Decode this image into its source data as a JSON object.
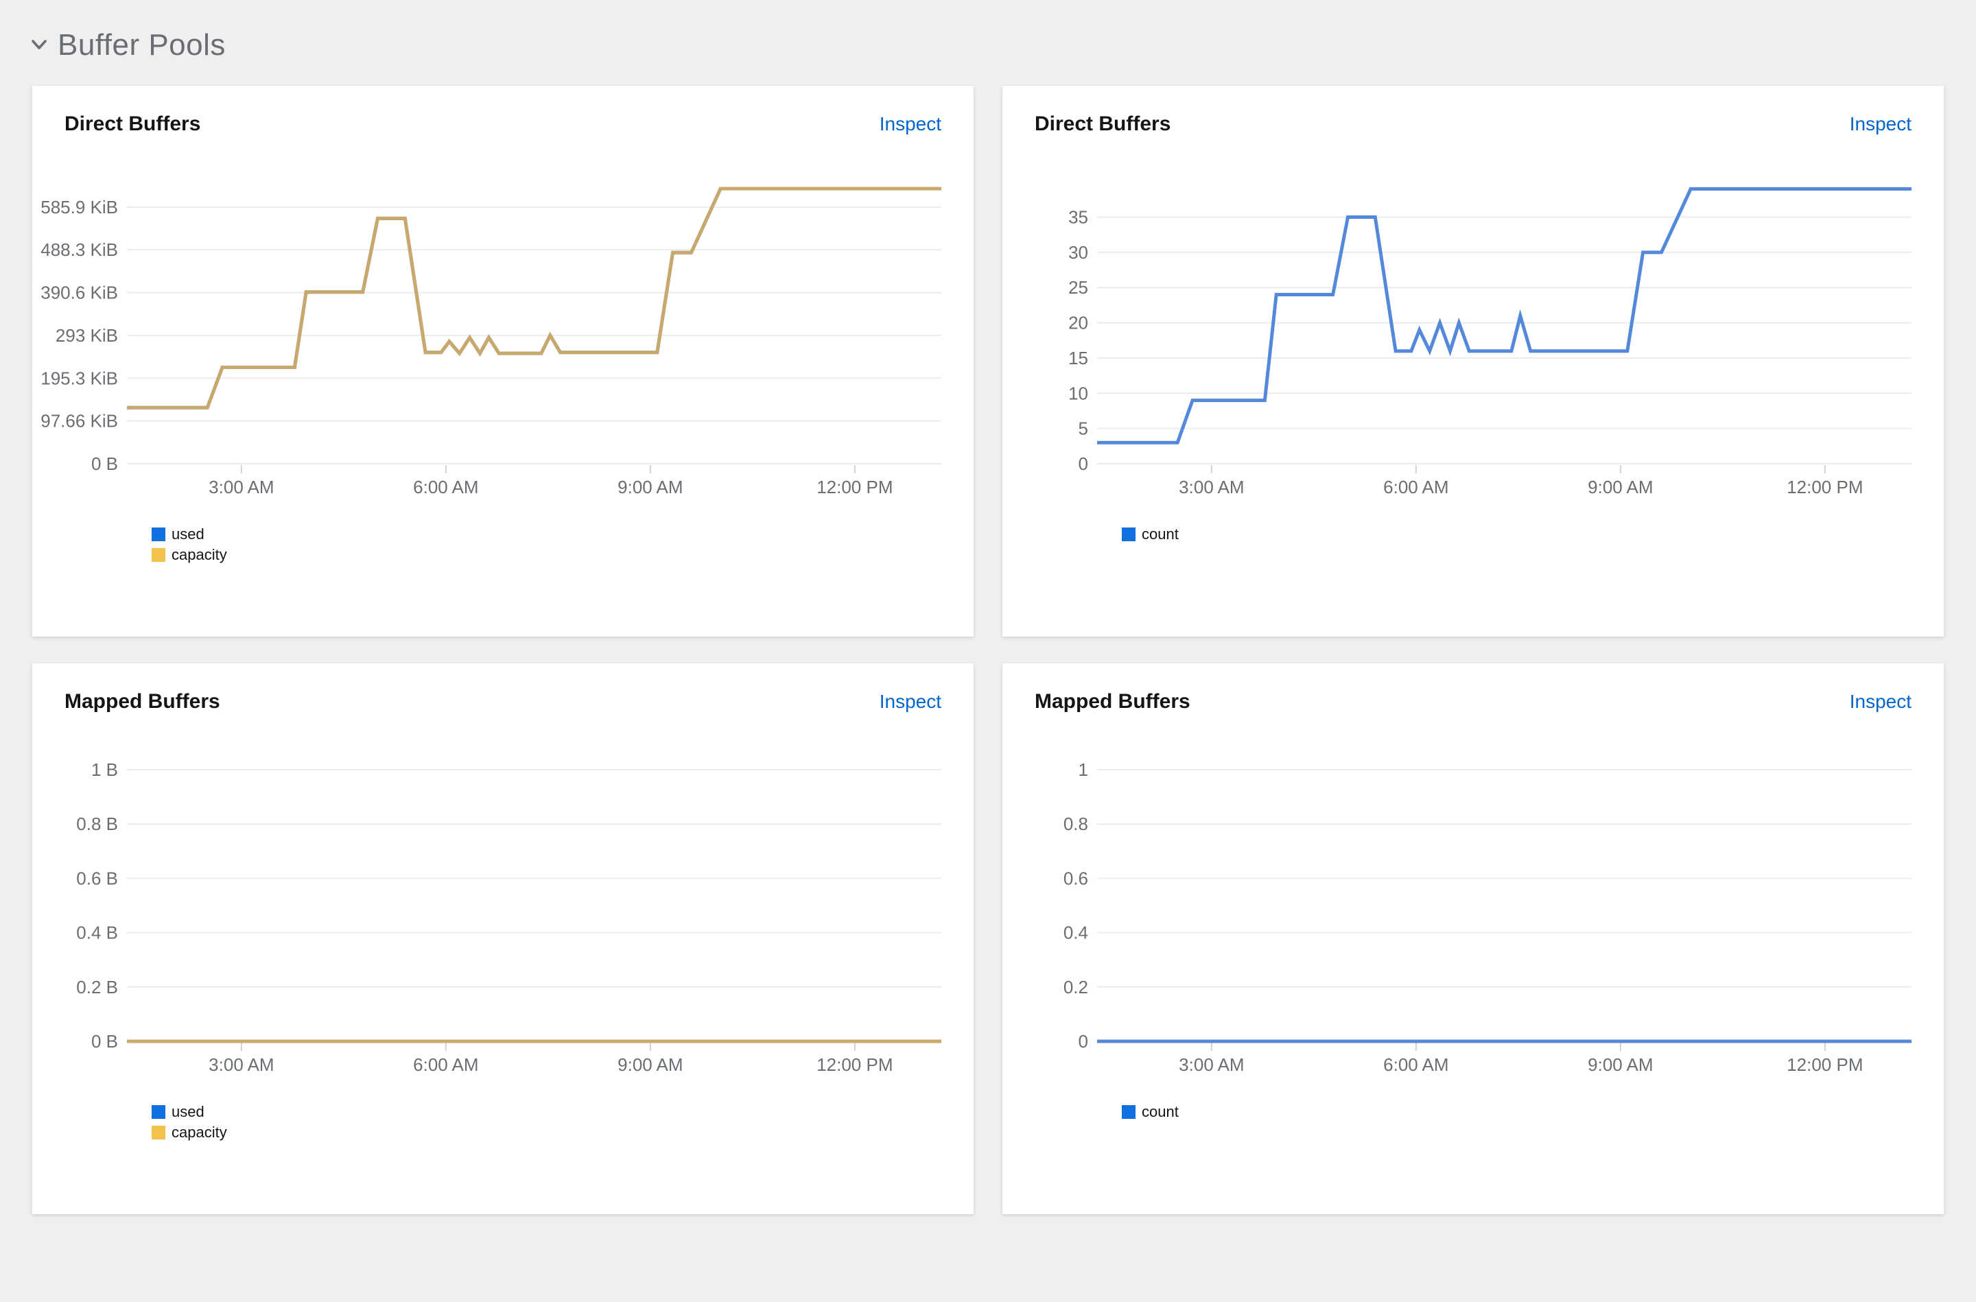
{
  "page": {
    "background": "#efefef",
    "section": {
      "title": "Buffer Pools",
      "collapse_icon": "chevron-down-icon",
      "title_color": "#6a6e73"
    }
  },
  "palette": {
    "axis_text": "#6a6e73",
    "gridline": "#ececec",
    "tick_mark": "#d2d2d2",
    "link_blue": "#0066cc",
    "legend_blue": "#1070e0",
    "legend_gold": "#f2c24c",
    "line_blue": "#5488da",
    "line_gold": "#c9a86b"
  },
  "cards": [
    {
      "title": "Direct Buffers",
      "inspect_label": "Inspect",
      "legend": [
        {
          "label": "used",
          "color": "#1070e0"
        },
        {
          "label": "capacity",
          "color": "#f2c24c"
        }
      ],
      "chart": {
        "type": "line",
        "grid": true,
        "y_unit": "bytes",
        "y_ticks": [
          {
            "label": "0 B",
            "v": 0
          },
          {
            "label": "97.66 KiB",
            "v": 97.66
          },
          {
            "label": "195.3 KiB",
            "v": 195.3
          },
          {
            "label": "293 KiB",
            "v": 293
          },
          {
            "label": "390.6 KiB",
            "v": 390.6
          },
          {
            "label": "488.3 KiB",
            "v": 488.3
          },
          {
            "label": "585.9 KiB",
            "v": 585.9
          }
        ],
        "y_plot_max": 653,
        "x_ticks": [
          {
            "label": "3:00 AM",
            "h": 3
          },
          {
            "label": "6:00 AM",
            "h": 6
          },
          {
            "label": "9:00 AM",
            "h": 9
          },
          {
            "label": "12:00 PM",
            "h": 12
          }
        ],
        "x_domain": [
          1.32,
          13.27
        ],
        "series": [
          {
            "name": "used",
            "color": "#5488da",
            "points": [
              [
                1.32,
                128
              ],
              [
                2.5,
                128
              ],
              [
                2.72,
                220
              ],
              [
                3.78,
                220
              ],
              [
                3.95,
                392
              ],
              [
                4.78,
                392
              ],
              [
                5.0,
                560
              ],
              [
                5.4,
                560
              ],
              [
                5.7,
                254
              ],
              [
                5.93,
                254
              ],
              [
                6.05,
                279
              ],
              [
                6.2,
                252
              ],
              [
                6.35,
                288
              ],
              [
                6.5,
                252
              ],
              [
                6.63,
                288
              ],
              [
                6.78,
                252
              ],
              [
                7.4,
                252
              ],
              [
                7.53,
                293
              ],
              [
                7.68,
                254
              ],
              [
                9.1,
                254
              ],
              [
                9.33,
                482
              ],
              [
                9.6,
                482
              ],
              [
                10.03,
                628
              ],
              [
                13.27,
                628
              ]
            ]
          },
          {
            "name": "capacity",
            "color": "#c9a86b",
            "points": [
              [
                1.32,
                128
              ],
              [
                2.5,
                128
              ],
              [
                2.72,
                220
              ],
              [
                3.78,
                220
              ],
              [
                3.95,
                392
              ],
              [
                4.78,
                392
              ],
              [
                5.0,
                560
              ],
              [
                5.4,
                560
              ],
              [
                5.7,
                254
              ],
              [
                5.93,
                254
              ],
              [
                6.05,
                279
              ],
              [
                6.2,
                252
              ],
              [
                6.35,
                288
              ],
              [
                6.5,
                252
              ],
              [
                6.63,
                288
              ],
              [
                6.78,
                252
              ],
              [
                7.4,
                252
              ],
              [
                7.53,
                293
              ],
              [
                7.68,
                254
              ],
              [
                9.1,
                254
              ],
              [
                9.33,
                482
              ],
              [
                9.6,
                482
              ],
              [
                10.03,
                628
              ],
              [
                13.27,
                628
              ]
            ]
          }
        ]
      }
    },
    {
      "title": "Direct Buffers",
      "inspect_label": "Inspect",
      "legend": [
        {
          "label": "count",
          "color": "#1070e0"
        }
      ],
      "chart": {
        "type": "line",
        "grid": true,
        "y_unit": "count",
        "y_ticks": [
          {
            "label": "0",
            "v": 0
          },
          {
            "label": "5",
            "v": 5
          },
          {
            "label": "10",
            "v": 10
          },
          {
            "label": "15",
            "v": 15
          },
          {
            "label": "20",
            "v": 20
          },
          {
            "label": "25",
            "v": 25
          },
          {
            "label": "30",
            "v": 30
          },
          {
            "label": "35",
            "v": 35
          }
        ],
        "y_plot_max": 40.6,
        "x_ticks": [
          {
            "label": "3:00 AM",
            "h": 3
          },
          {
            "label": "6:00 AM",
            "h": 6
          },
          {
            "label": "9:00 AM",
            "h": 9
          },
          {
            "label": "12:00 PM",
            "h": 12
          }
        ],
        "x_domain": [
          1.32,
          13.27
        ],
        "series": [
          {
            "name": "count",
            "color": "#5488da",
            "points": [
              [
                1.32,
                3
              ],
              [
                2.5,
                3
              ],
              [
                2.72,
                9
              ],
              [
                3.78,
                9
              ],
              [
                3.95,
                24
              ],
              [
                4.78,
                24
              ],
              [
                5.0,
                35
              ],
              [
                5.4,
                35
              ],
              [
                5.7,
                16
              ],
              [
                5.93,
                16
              ],
              [
                6.05,
                19
              ],
              [
                6.2,
                16
              ],
              [
                6.35,
                20
              ],
              [
                6.5,
                16
              ],
              [
                6.63,
                20
              ],
              [
                6.78,
                16
              ],
              [
                7.4,
                16
              ],
              [
                7.53,
                21
              ],
              [
                7.68,
                16
              ],
              [
                9.1,
                16
              ],
              [
                9.33,
                30
              ],
              [
                9.6,
                30
              ],
              [
                10.03,
                39
              ],
              [
                13.27,
                39
              ]
            ]
          }
        ]
      }
    },
    {
      "title": "Mapped Buffers",
      "inspect_label": "Inspect",
      "legend": [
        {
          "label": "used",
          "color": "#1070e0"
        },
        {
          "label": "capacity",
          "color": "#f2c24c"
        }
      ],
      "chart": {
        "type": "line",
        "grid": true,
        "y_unit": "bytes",
        "y_ticks": [
          {
            "label": "0 B",
            "v": 0
          },
          {
            "label": "0.2 B",
            "v": 0.2
          },
          {
            "label": "0.4 B",
            "v": 0.4
          },
          {
            "label": "0.6 B",
            "v": 0.6
          },
          {
            "label": "0.8 B",
            "v": 0.8
          },
          {
            "label": "1 B",
            "v": 1
          }
        ],
        "y_plot_max": 1.053,
        "x_ticks": [
          {
            "label": "3:00 AM",
            "h": 3
          },
          {
            "label": "6:00 AM",
            "h": 6
          },
          {
            "label": "9:00 AM",
            "h": 9
          },
          {
            "label": "12:00 PM",
            "h": 12
          }
        ],
        "x_domain": [
          1.32,
          13.27
        ],
        "series": [
          {
            "name": "used",
            "color": "#5488da",
            "points": [
              [
                1.32,
                0
              ],
              [
                13.27,
                0
              ]
            ]
          },
          {
            "name": "capacity",
            "color": "#c9a86b",
            "points": [
              [
                1.32,
                0
              ],
              [
                13.27,
                0
              ]
            ]
          }
        ]
      }
    },
    {
      "title": "Mapped Buffers",
      "inspect_label": "Inspect",
      "legend": [
        {
          "label": "count",
          "color": "#1070e0"
        }
      ],
      "chart": {
        "type": "line",
        "grid": true,
        "y_unit": "count",
        "y_ticks": [
          {
            "label": "0",
            "v": 0
          },
          {
            "label": "0.2",
            "v": 0.2
          },
          {
            "label": "0.4",
            "v": 0.4
          },
          {
            "label": "0.6",
            "v": 0.6
          },
          {
            "label": "0.8",
            "v": 0.8
          },
          {
            "label": "1",
            "v": 1
          }
        ],
        "y_plot_max": 1.053,
        "x_ticks": [
          {
            "label": "3:00 AM",
            "h": 3
          },
          {
            "label": "6:00 AM",
            "h": 6
          },
          {
            "label": "9:00 AM",
            "h": 9
          },
          {
            "label": "12:00 PM",
            "h": 12
          }
        ],
        "x_domain": [
          1.32,
          13.27
        ],
        "series": [
          {
            "name": "count",
            "color": "#5488da",
            "points": [
              [
                1.32,
                0
              ],
              [
                13.27,
                0
              ]
            ]
          }
        ]
      }
    }
  ]
}
